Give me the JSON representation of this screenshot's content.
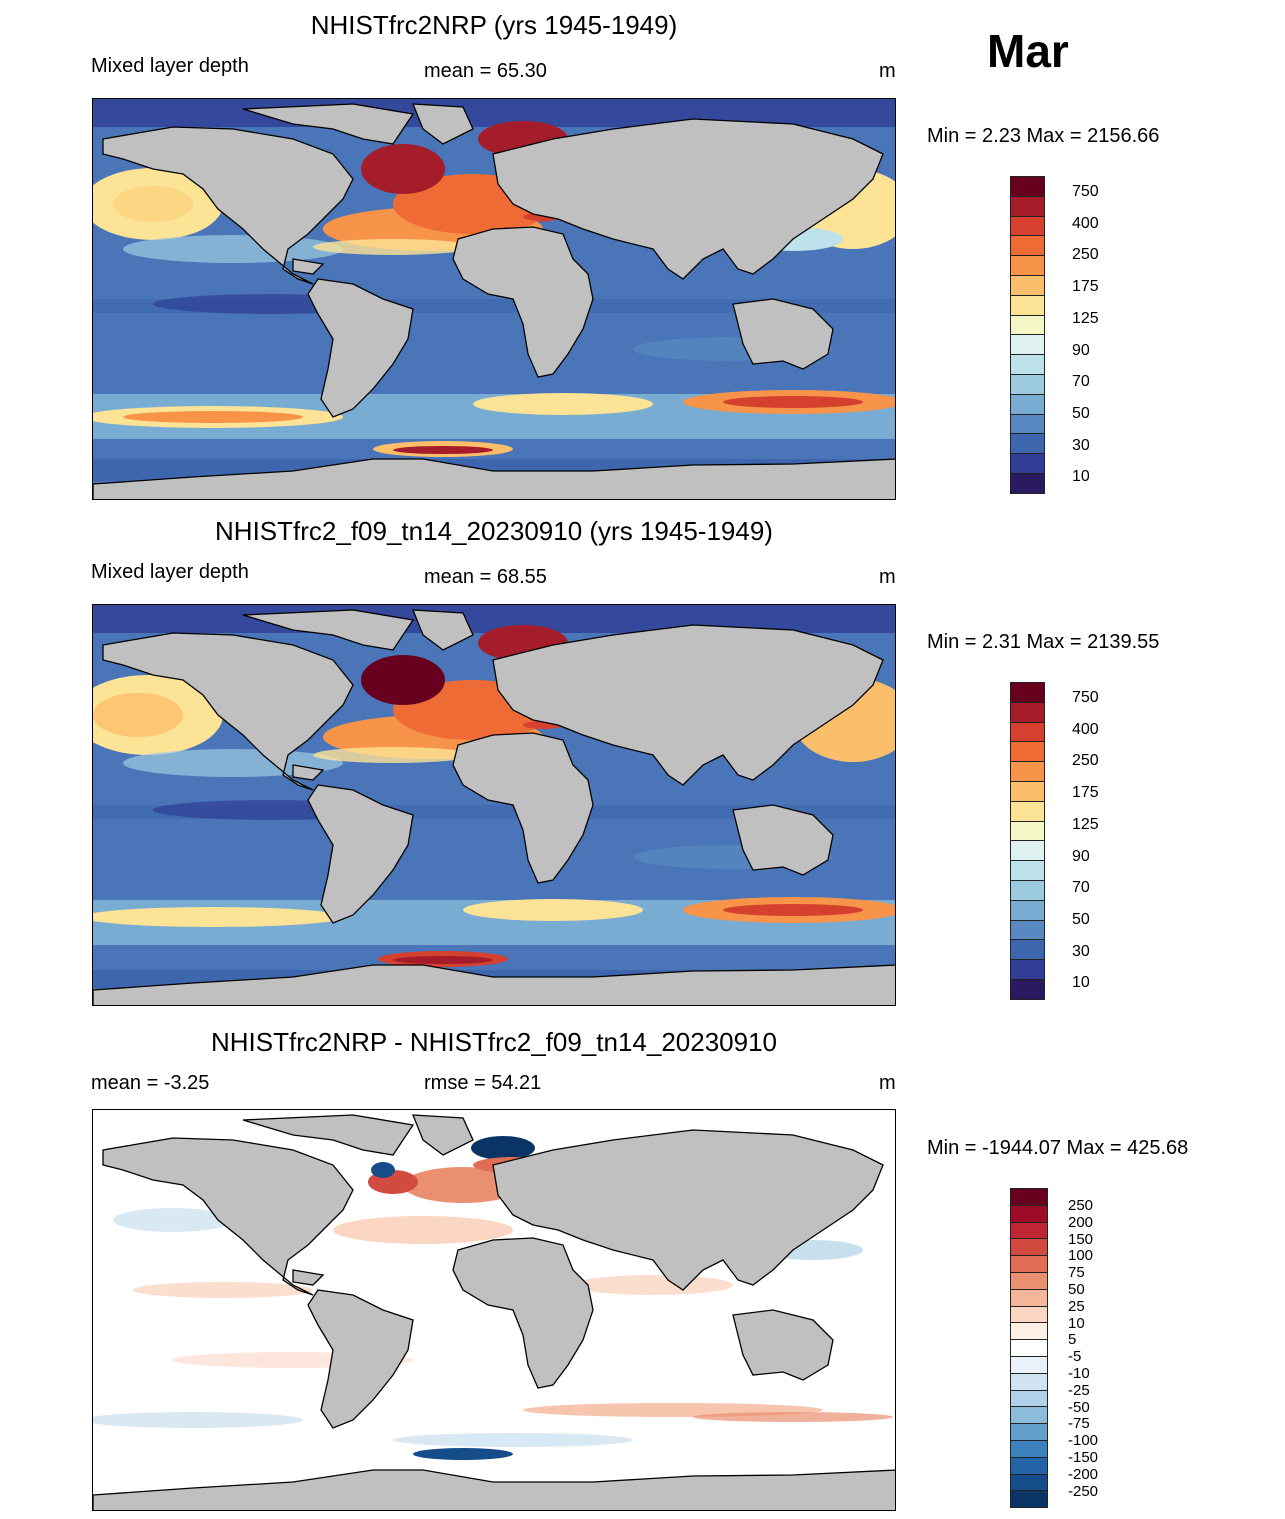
{
  "month": "Mar",
  "panels": [
    {
      "title": "NHISTfrc2NRP (yrs 1945-1949)",
      "left_label": "Mixed layer depth",
      "center_label": "mean =  65.30",
      "units": "m",
      "minmax": "Min =   2.23 Max = 2156.66",
      "scale": "mld"
    },
    {
      "title": "NHISTfrc2_f09_tn14_20230910 (yrs 1945-1949)",
      "left_label": "Mixed layer depth",
      "center_label": "mean =  68.55",
      "units": "m",
      "minmax": "Min =   2.31 Max = 2139.55",
      "scale": "mld"
    },
    {
      "title": "NHISTfrc2NRP - NHISTfrc2_f09_tn14_20230910",
      "left_label": "mean =  -3.25",
      "center_label": "rmse =  54.21",
      "units": "m",
      "minmax": "Min = -1944.07 Max = 425.68",
      "scale": "diff"
    }
  ],
  "colorbars": {
    "mld": {
      "colors": [
        "#67001f",
        "#a51c2a",
        "#d6402f",
        "#ef6b35",
        "#f7944a",
        "#fbbe6a",
        "#fde396",
        "#f5f7c6",
        "#e0f1f2",
        "#bee2ec",
        "#9ccbe0",
        "#79acd2",
        "#5889c0",
        "#3d66ae",
        "#323d96",
        "#2a1a60"
      ],
      "labels": [
        "750",
        "400",
        "250",
        "175",
        "125",
        "90",
        "70",
        "50",
        "30",
        "10"
      ]
    },
    "diff": {
      "colors": [
        "#67001f",
        "#9e0b27",
        "#bf2533",
        "#d24a40",
        "#e06c55",
        "#ea9070",
        "#f5b598",
        "#fbd6c3",
        "#fff0e6",
        "#ffffff",
        "#e9f2f8",
        "#cfe3f0",
        "#b0d1e7",
        "#8cbcda",
        "#649fcb",
        "#3d82bc",
        "#2363a6",
        "#144d8a",
        "#0b3466"
      ],
      "labels": [
        "250",
        "200",
        "150",
        "100",
        "75",
        "50",
        "25",
        "10",
        "5",
        "-5",
        "-10",
        "-25",
        "-50",
        "-75",
        "-100",
        "-150",
        "-200",
        "-250"
      ]
    }
  }
}
